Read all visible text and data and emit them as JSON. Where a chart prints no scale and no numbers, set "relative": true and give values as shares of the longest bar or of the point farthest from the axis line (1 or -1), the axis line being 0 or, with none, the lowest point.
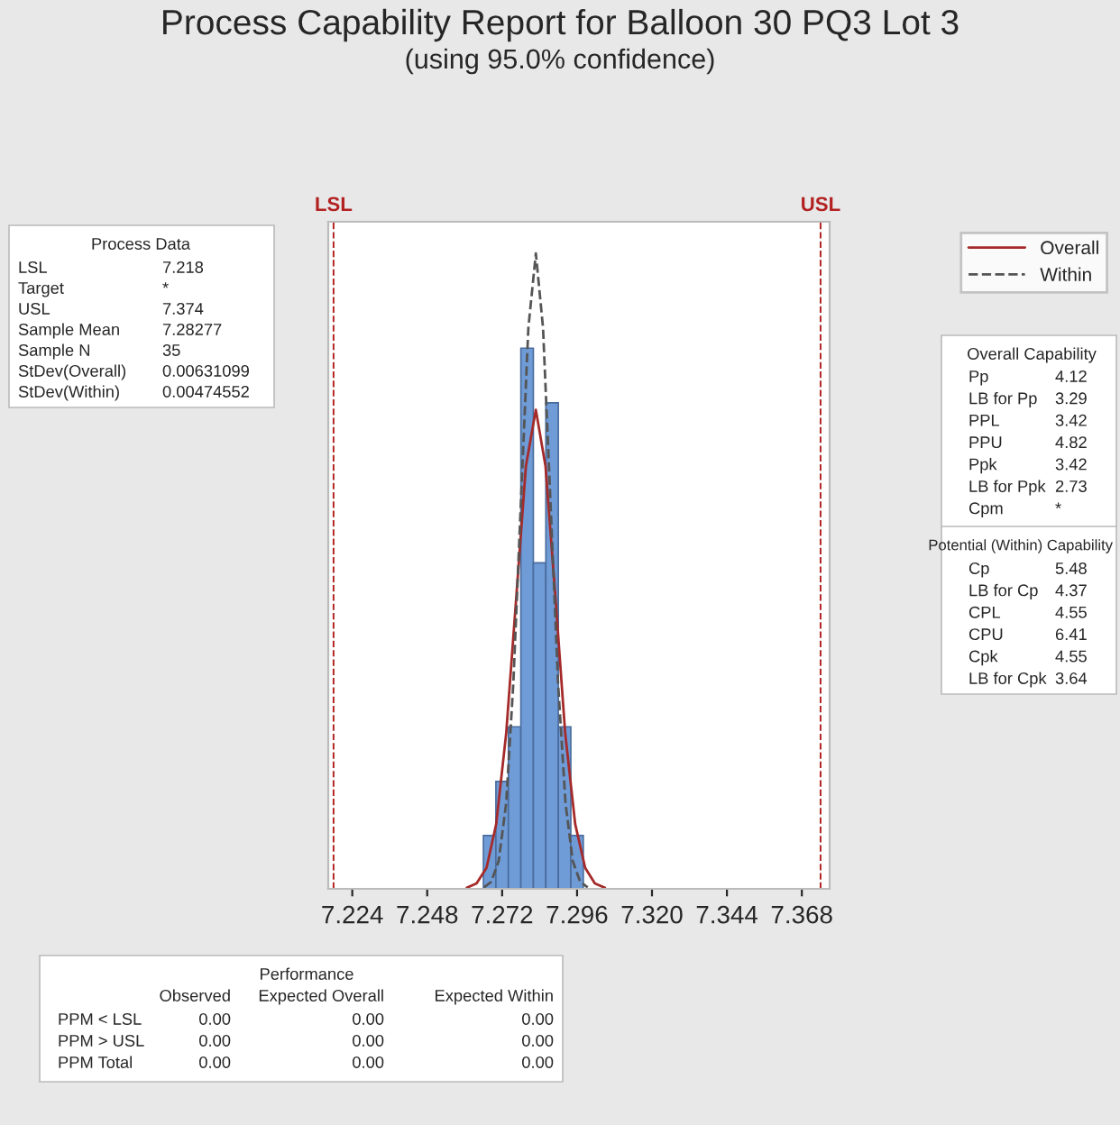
{
  "chart_data": {
    "type": "histogram",
    "title": "Process Capability Report for Balloon 30 PQ3 Lot 3",
    "subtitle": "(using 95.0% confidence)",
    "relative": true,
    "bins": [
      7.266,
      7.27,
      7.274,
      7.278,
      7.282,
      7.286,
      7.29,
      7.294,
      7.298
    ],
    "values": [
      0.084,
      0.169,
      0.255,
      0.851,
      0.513,
      0.765,
      0.255,
      0.084
    ],
    "color": "#6f9bd6",
    "series": [
      {
        "type": "line",
        "name": "Overall",
        "color": "#a52a2a",
        "line_style": "solid",
        "x": [
          7.2607,
          7.2638,
          7.267,
          7.2701,
          7.2733,
          7.2765,
          7.2796,
          7.2828,
          7.2859,
          7.2891,
          7.2922,
          7.2954,
          7.2986,
          7.3017,
          7.3049
        ],
        "values": [
          0.0017,
          0.0084,
          0.033,
          0.102,
          0.245,
          0.457,
          0.665,
          0.754,
          0.665,
          0.457,
          0.245,
          0.102,
          0.033,
          0.0084,
          0.0017
        ]
      },
      {
        "type": "line",
        "name": "Within",
        "color": "#555555",
        "line_style": "dashed",
        "x": [
          7.2662,
          7.2685,
          7.2709,
          7.2733,
          7.2756,
          7.278,
          7.2804,
          7.2828,
          7.2851,
          7.2875,
          7.2899,
          7.2923,
          7.2946,
          7.297,
          7.2994
        ],
        "values": [
          0.0022,
          0.011,
          0.044,
          0.135,
          0.325,
          0.607,
          0.883,
          1,
          0.883,
          0.607,
          0.325,
          0.135,
          0.044,
          0.011,
          0.0022
        ]
      }
    ],
    "xlim": [
      7.2163,
      7.3769
    ],
    "xticks": [
      7.224,
      7.248,
      7.272,
      7.296,
      {
        "value": 7.32,
        "label": "7.320"
      },
      7.344,
      7.368
    ],
    "ref_lines": [
      {
        "axis": "x",
        "value": 7.218,
        "label": "LSL",
        "color": "#b22222",
        "line_style": "dashed"
      },
      {
        "axis": "x",
        "value": 7.374,
        "label": "USL",
        "color": "#b22222",
        "line_style": "dashed"
      }
    ],
    "legend": "top right",
    "grid": false,
    "annotations": [
      "Process Data",
      "LSL",
      "7.218",
      "Target",
      "*",
      "USL",
      "7.374",
      "Sample Mean",
      "7.28277",
      "Sample N",
      "35",
      "StDev(Overall)",
      "0.00631099",
      "StDev(Within)",
      "0.00474552",
      "Overall Capability",
      "Pp",
      "4.12",
      "LB for Pp",
      "3.29",
      "PPL",
      "3.42",
      "PPU",
      "4.82",
      "Ppk",
      "3.42",
      "LB for Ppk",
      "2.73",
      "Cpm",
      "*",
      "Potential (Within) Capability",
      "Cp",
      "5.48",
      "LB for Cp",
      "4.37",
      "CPL",
      "4.55",
      "CPU",
      "6.41",
      "Cpk",
      "4.55",
      "LB for Cpk",
      "3.64",
      "Performance",
      "Observed",
      "Expected Overall",
      "Expected Within",
      "PPM < LSL",
      "0.00",
      "0.00",
      "0.00",
      "PPM > USL",
      "0.00",
      "0.00",
      "0.00",
      "PPM Total",
      "0.00",
      "0.00",
      "0.00"
    ]
  }
}
